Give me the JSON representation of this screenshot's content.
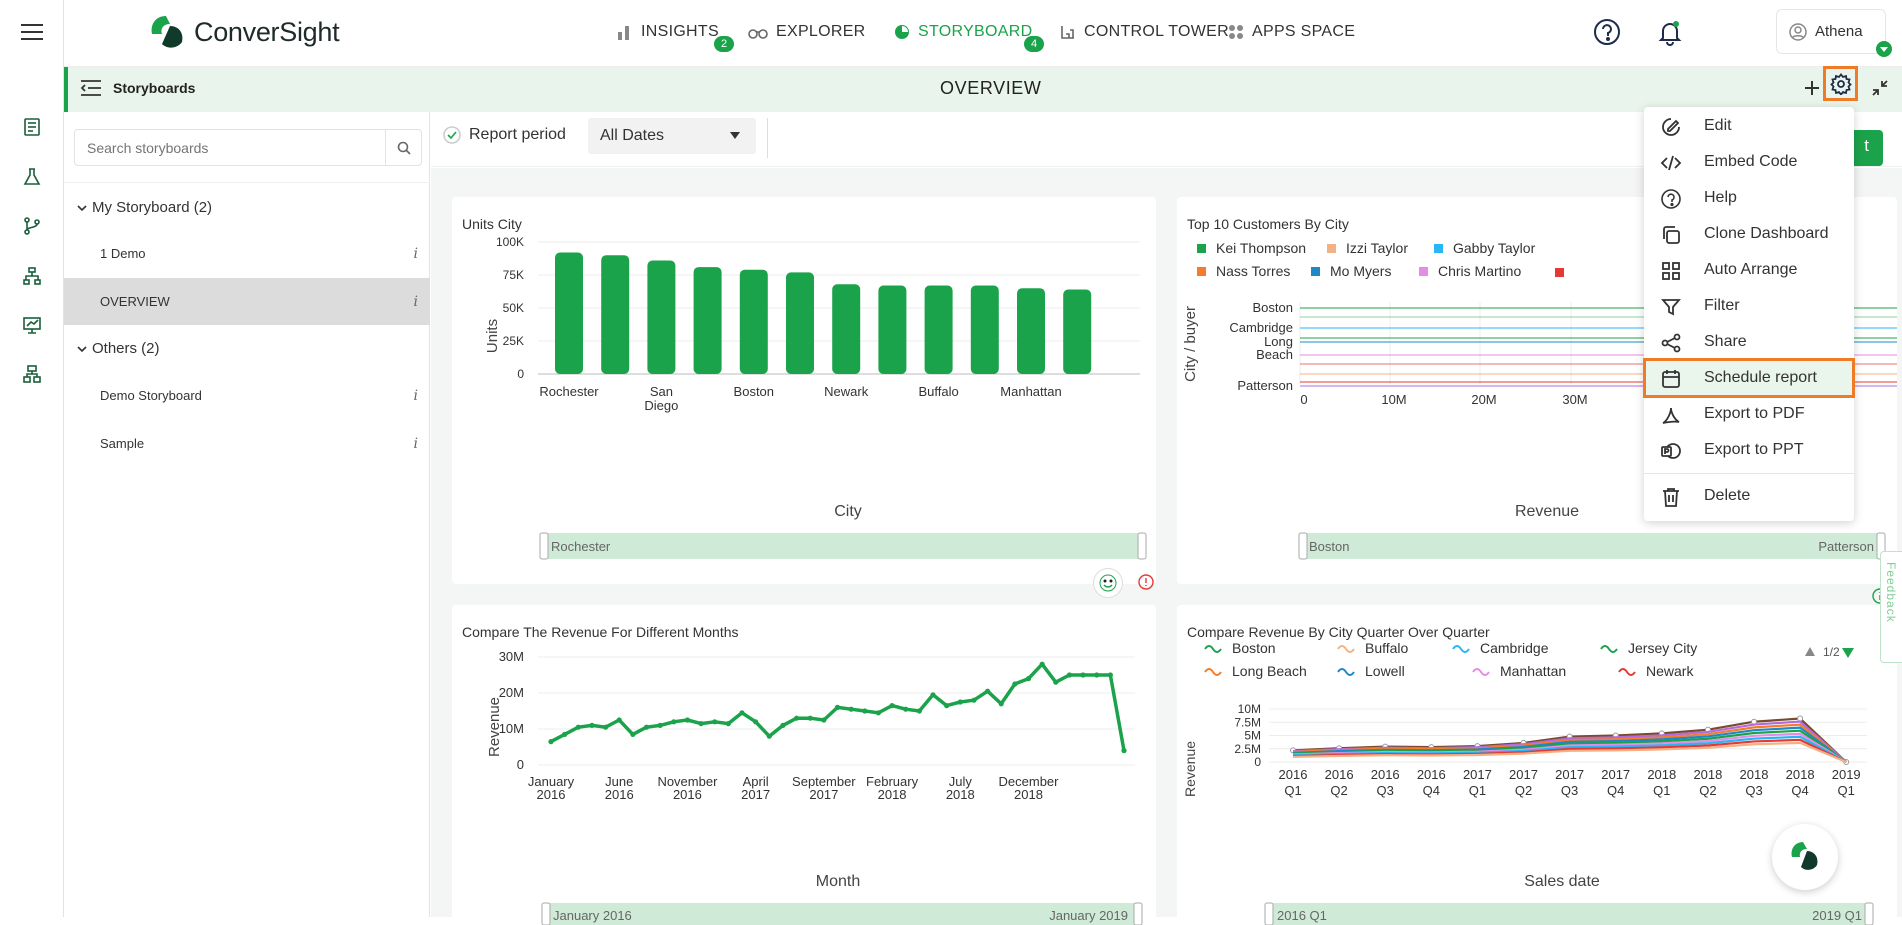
{
  "app": {
    "logo_text": "ConverSight"
  },
  "nav": {
    "items": [
      {
        "label": "INSIGHTS",
        "badge": "2"
      },
      {
        "label": "EXPLORER"
      },
      {
        "label": "STORYBOARD",
        "badge": "4"
      },
      {
        "label": "CONTROL TOWER"
      },
      {
        "label": "APPS SPACE"
      }
    ]
  },
  "user": {
    "name": "Athena"
  },
  "subheader": {
    "section": "Storyboards",
    "page_title": "OVERVIEW"
  },
  "sidebar": {
    "search_placeholder": "Search storyboards",
    "groups": [
      {
        "label": "My Storyboard (2)",
        "items": [
          "1 Demo",
          "OVERVIEW"
        ]
      },
      {
        "label": "Others (2)",
        "items": [
          "Demo Storyboard",
          "Sample"
        ]
      }
    ],
    "info_glyph": "i"
  },
  "filters": {
    "report_period_label": "Report period",
    "date_value": "All Dates",
    "right_button_fragment": "t"
  },
  "menu": {
    "items": [
      "Edit",
      "Embed Code",
      "Help",
      "Clone Dashboard",
      "Auto Arrange",
      "Filter",
      "Share",
      "Schedule report",
      "Export to PDF",
      "Export to PPT",
      "Delete"
    ],
    "highlighted": "Schedule report"
  },
  "feedback_label": "Feedback",
  "colors": {
    "accent": "#1aa34a",
    "highlight": "#f07b26"
  },
  "chart_data": [
    {
      "type": "bar",
      "title": "Units City",
      "xlabel": "City",
      "ylabel": "Units",
      "ylim": [
        0,
        100000
      ],
      "yticks": [
        "0",
        "25K",
        "50K",
        "75K",
        "100K"
      ],
      "categories": [
        "Rochester",
        "",
        "San Diego",
        "",
        "Boston",
        "",
        "Newark",
        "",
        "Buffalo",
        "",
        "Manhattan",
        ""
      ],
      "category_labels": [
        "Rochester",
        "San",
        "Diego",
        "Boston",
        "Newark",
        "Buffalo",
        "Manhattan"
      ],
      "values": [
        92000,
        90000,
        86000,
        81000,
        79000,
        77000,
        68000,
        67000,
        67000,
        67000,
        65000,
        64000
      ],
      "slider_label": "Rochester"
    },
    {
      "type": "line",
      "title": "Top 10 Customers By City",
      "xlabel": "Revenue",
      "ylabel": "City / buyer",
      "xticks": [
        "0",
        "10M",
        "20M",
        "30M"
      ],
      "ycategories": [
        "Boston",
        "Cambridge",
        "Long",
        "Beach",
        "Patterson"
      ],
      "legend": [
        "Kei Thompson",
        "Izzi Taylor",
        "Gabby Taylor",
        "Nass Torres",
        "Mo Myers",
        "Chris Martino"
      ],
      "slider_label": "Boston",
      "slider_label_right": "Patterson"
    },
    {
      "type": "line",
      "title": "Compare The Revenue For Different Months",
      "xlabel": "Month",
      "ylabel": "Revenue",
      "ylim": [
        0,
        30000000
      ],
      "yticks": [
        "0",
        "10M",
        "20M",
        "30M"
      ],
      "xticks": [
        [
          "January",
          "2016"
        ],
        [
          "June",
          "2016"
        ],
        [
          "November",
          "2016"
        ],
        [
          "April",
          "2017"
        ],
        [
          "September",
          "2017"
        ],
        [
          "February",
          "2018"
        ],
        [
          "July",
          "2018"
        ],
        [
          "December",
          "2018"
        ]
      ],
      "values": [
        6.5,
        8.5,
        10.5,
        11,
        10.5,
        12.5,
        8.5,
        10.5,
        11,
        12,
        12.5,
        11.5,
        12,
        11.5,
        14.5,
        12,
        8,
        11,
        13,
        13,
        12.5,
        16,
        15.5,
        15,
        14.5,
        16.5,
        15.5,
        15,
        19.5,
        16.5,
        17.5,
        18,
        20.5,
        17,
        22.5,
        24,
        28,
        23,
        25,
        25,
        25,
        25,
        4
      ],
      "slider_label": "January 2016",
      "slider_label_right": "January 2019"
    },
    {
      "type": "line",
      "title": "Compare Revenue By City Quarter Over Quarter",
      "xlabel": "Sales date",
      "ylabel": "Revenue",
      "yticks": [
        "0",
        "2.5M",
        "5M",
        "7.5M",
        "10M"
      ],
      "xticks": [
        [
          "2016",
          "Q1"
        ],
        [
          "2016",
          "Q2"
        ],
        [
          "2016",
          "Q3"
        ],
        [
          "2016",
          "Q4"
        ],
        [
          "2017",
          "Q1"
        ],
        [
          "2017",
          "Q2"
        ],
        [
          "2017",
          "Q3"
        ],
        [
          "2017",
          "Q4"
        ],
        [
          "2018",
          "Q1"
        ],
        [
          "2018",
          "Q2"
        ],
        [
          "2018",
          "Q3"
        ],
        [
          "2018",
          "Q4"
        ],
        [
          "2019",
          "Q1"
        ]
      ],
      "legend": [
        "Boston",
        "Buffalo",
        "Cambridge",
        "Jersey City",
        "Long Beach",
        "Lowell",
        "Manhattan",
        "Newark"
      ],
      "legend_page": "1/2",
      "slider_label": "2016 Q1",
      "slider_label_right": "2019 Q1"
    }
  ]
}
